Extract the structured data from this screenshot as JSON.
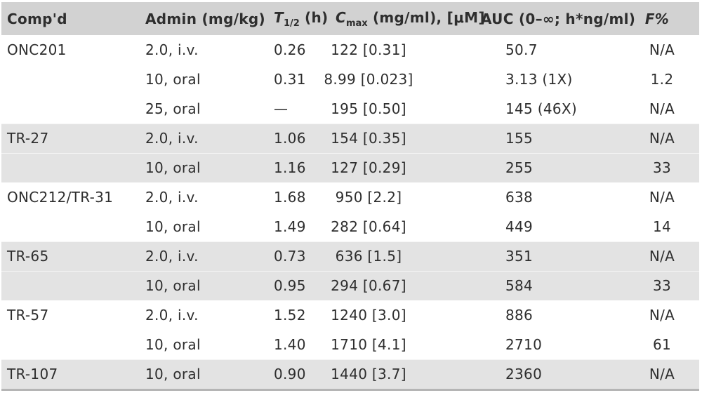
{
  "colors": {
    "header_bg": "#d2d2d2",
    "shaded_row_bg": "#e3e3e3",
    "row_bg": "#ffffff",
    "text": "#2e2e2e",
    "bottom_rule": "#b5b5b5"
  },
  "table": {
    "header": {
      "compound": "Comp'd",
      "admin": "Admin (mg/kg)",
      "thalf_symbol": "T",
      "thalf_sub": "1/2",
      "thalf_unit": " (h)",
      "cmax_symbol": "C",
      "cmax_sub": "max",
      "cmax_unit": " (mg/ml), [μM]",
      "auc": "AUC (0–∞; h*ng/ml)",
      "f": "F%"
    },
    "rows": [
      {
        "compound": "ONC201",
        "admin": "2.0, i.v.",
        "thalf": "0.26",
        "cmax": "122 [0.31]",
        "auc": "50.7",
        "f": "N/A",
        "shaded": false
      },
      {
        "compound": "",
        "admin": "10, oral",
        "thalf": "0.31",
        "cmax": "8.99 [0.023]",
        "auc": "3.13 (1X)",
        "f": "1.2",
        "shaded": false
      },
      {
        "compound": "",
        "admin": "25, oral",
        "thalf": "—",
        "cmax": "195 [0.50]",
        "auc": "145 (46X)",
        "f": "N/A",
        "shaded": false
      },
      {
        "compound": "TR-27",
        "admin": "2.0, i.v.",
        "thalf": "1.06",
        "cmax": "154 [0.35]",
        "auc": "155",
        "f": "N/A",
        "shaded": true
      },
      {
        "compound": "",
        "admin": "10, oral",
        "thalf": "1.16",
        "cmax": "127 [0.29]",
        "auc": "255",
        "f": "33",
        "shaded": true
      },
      {
        "compound": "ONC212/TR-31",
        "admin": "2.0, i.v.",
        "thalf": "1.68",
        "cmax": "950 [2.2]",
        "auc": "638",
        "f": "N/A",
        "shaded": false
      },
      {
        "compound": "",
        "admin": "10, oral",
        "thalf": "1.49",
        "cmax": "282 [0.64]",
        "auc": "449",
        "f": "14",
        "shaded": false
      },
      {
        "compound": "TR-65",
        "admin": "2.0, i.v.",
        "thalf": "0.73",
        "cmax": "636 [1.5]",
        "auc": "351",
        "f": "N/A",
        "shaded": true
      },
      {
        "compound": "",
        "admin": "10, oral",
        "thalf": "0.95",
        "cmax": "294 [0.67]",
        "auc": "584",
        "f": "33",
        "shaded": true
      },
      {
        "compound": "TR-57",
        "admin": "2.0, i.v.",
        "thalf": "1.52",
        "cmax": "1240 [3.0]",
        "auc": "886",
        "f": "N/A",
        "shaded": false
      },
      {
        "compound": "",
        "admin": "10, oral",
        "thalf": "1.40",
        "cmax": "1710 [4.1]",
        "auc": "2710",
        "f": "61",
        "shaded": false
      },
      {
        "compound": "TR-107",
        "admin": "10, oral",
        "thalf": "0.90",
        "cmax": "1440 [3.7]",
        "auc": "2360",
        "f": "N/A",
        "shaded": true
      }
    ]
  }
}
